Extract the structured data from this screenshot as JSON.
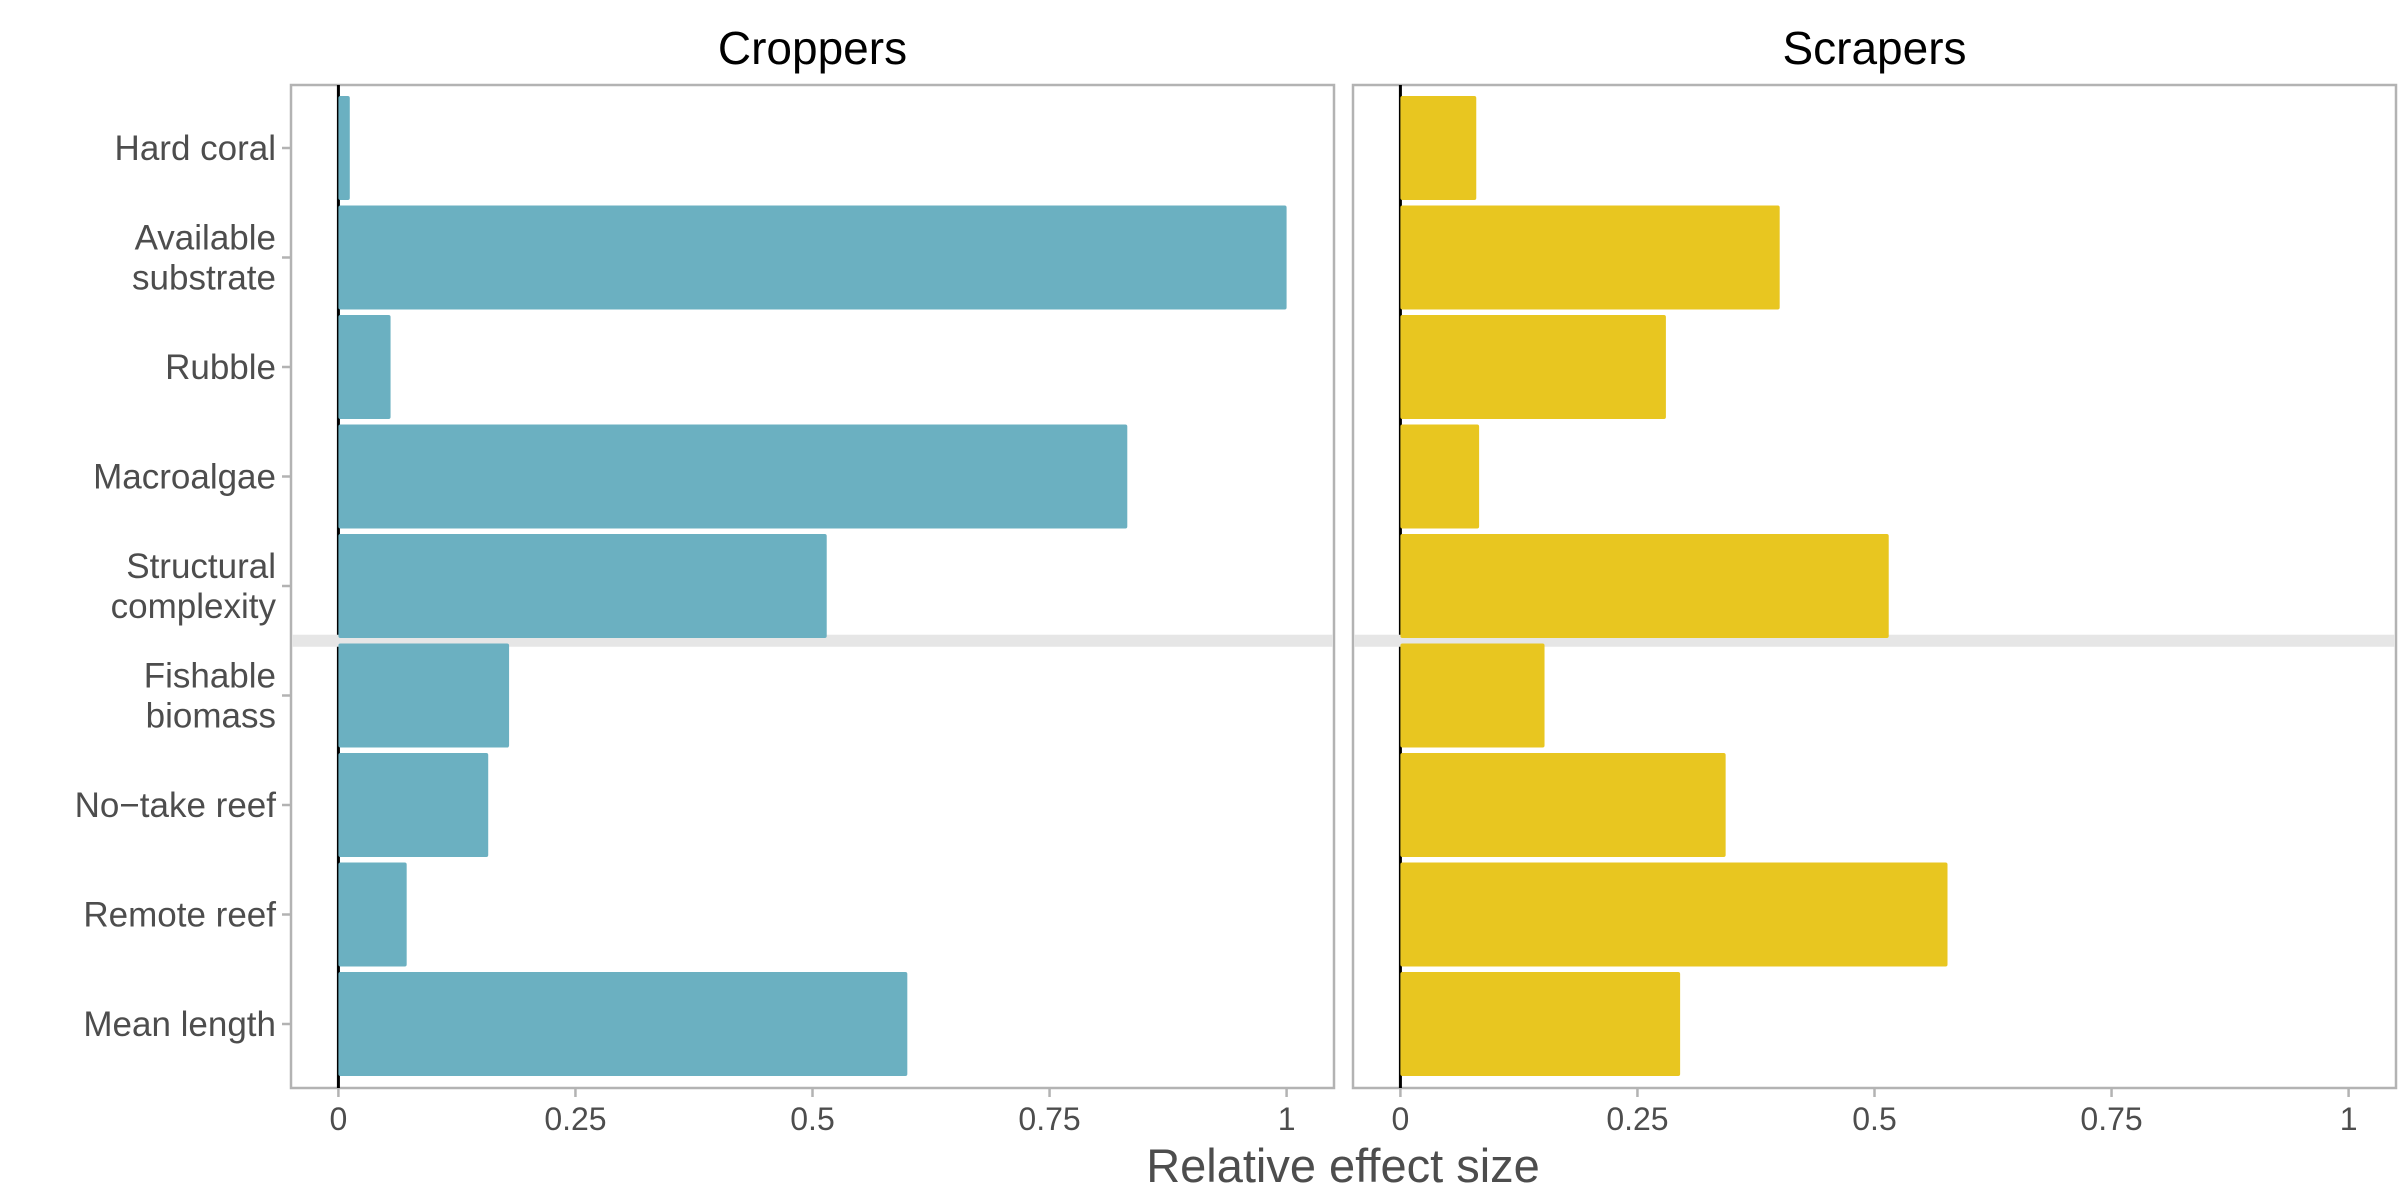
{
  "chart_data": {
    "type": "bar",
    "orientation": "horizontal",
    "xlabel": "Relative effect size",
    "xlim": [
      -0.05,
      1.05
    ],
    "xticks": [
      0,
      0.25,
      0.5,
      0.75,
      1
    ],
    "xtick_labels": [
      "0",
      "0.25",
      "0.5",
      "0.75",
      "1"
    ],
    "categories": [
      [
        "Hard coral"
      ],
      [
        "Available",
        "substrate"
      ],
      [
        "Rubble"
      ],
      [
        "Macroalgae"
      ],
      [
        "Structural",
        "complexity"
      ],
      [
        "Fishable",
        "biomass"
      ],
      [
        "No−take reef"
      ],
      [
        "Remote reef"
      ],
      [
        "Mean length"
      ]
    ],
    "group_separator_after_index": 4,
    "panels": [
      {
        "title": "Croppers",
        "color": "#6bb0c1",
        "values": [
          0.012,
          1.0,
          0.055,
          0.832,
          0.515,
          0.18,
          0.158,
          0.072,
          0.6
        ]
      },
      {
        "title": "Scrapers",
        "color": "#e8c620",
        "values": [
          0.08,
          0.4,
          0.28,
          0.083,
          0.515,
          0.152,
          0.343,
          0.577,
          0.295
        ]
      }
    ],
    "grid": false,
    "legend": "none",
    "separator_color": "#e6e6e6",
    "frame_color": "#b3b3b3"
  }
}
